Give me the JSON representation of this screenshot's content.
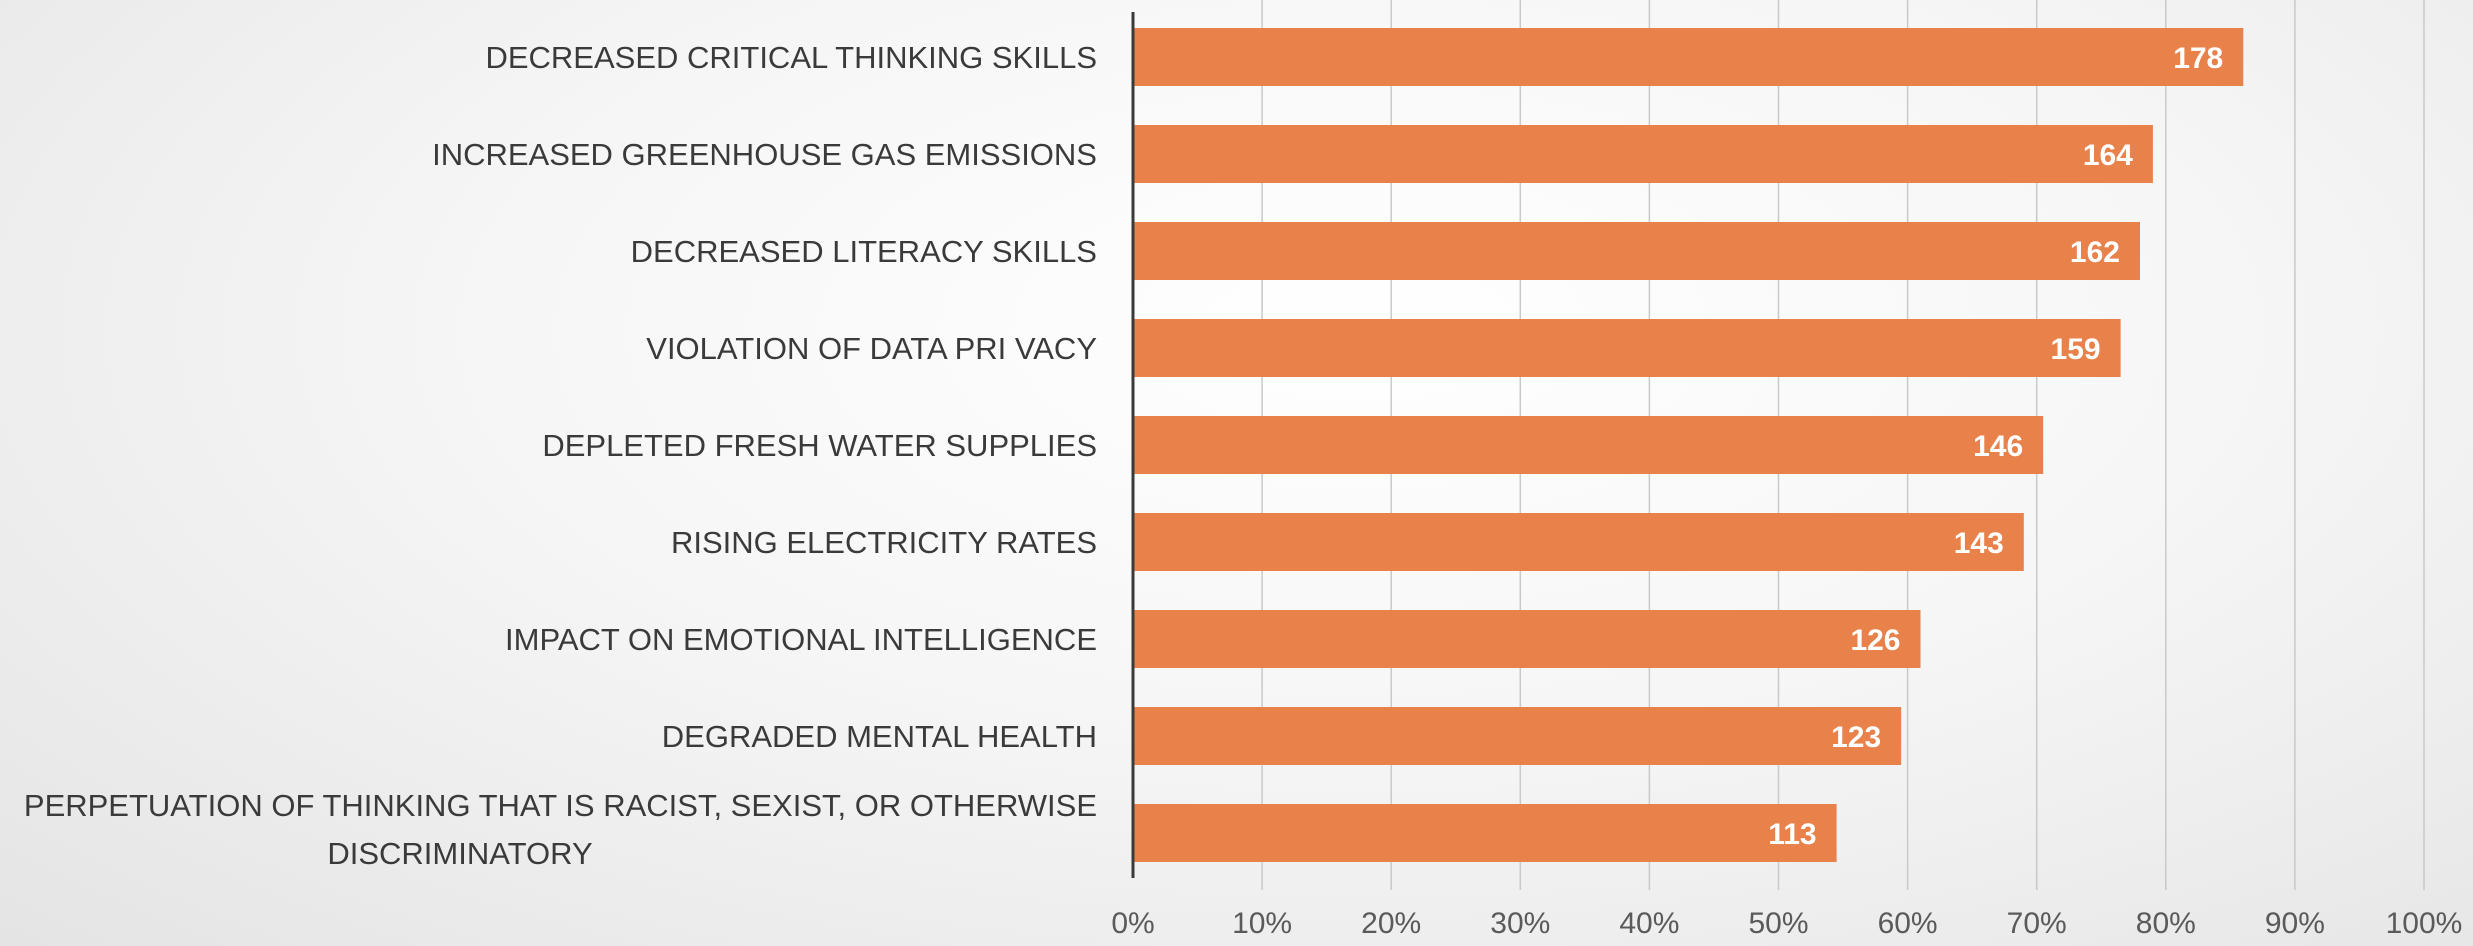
{
  "chart_data": {
    "type": "bar",
    "orientation": "horizontal",
    "categories": [
      "DECREASED CRITICAL THINKING SKILLS",
      "INCREASED GREENHOUSE GAS EMISSIONS",
      "DECREASED LITERACY SKILLS",
      "VIOLATION OF DATA PRI VACY",
      "DEPLETED FRESH WATER SUPPLIES",
      "RISING ELECTRICITY RATES",
      "IMPACT ON EMOTIONAL INTELLIGENCE",
      "DEGRADED MENTAL HEALTH",
      "PERPETUATION OF THINKING THAT IS RACIST, SEXIST, OR OTHERWISE DISCRIMINATORY"
    ],
    "category_lines": [
      [
        "DECREASED CRITICAL THINKING SKILLS"
      ],
      [
        "INCREASED GREENHOUSE GAS EMISSIONS"
      ],
      [
        "DECREASED LITERACY SKILLS"
      ],
      [
        "VIOLATION OF DATA PRI VACY"
      ],
      [
        "DEPLETED FRESH WATER SUPPLIES"
      ],
      [
        "RISING ELECTRICITY RATES"
      ],
      [
        "IMPACT ON EMOTIONAL INTELLIGENCE"
      ],
      [
        "DEGRADED MENTAL HEALTH"
      ],
      [
        "PERPETUATION OF THINKING THAT IS RACIST, SEXIST, OR OTHERWISE",
        "DISCRIMINATORY"
      ]
    ],
    "percent_values": [
      86,
      79,
      78,
      76.5,
      70.5,
      69,
      61,
      59.5,
      54.5
    ],
    "data_labels": [
      "178",
      "164",
      "162",
      "159",
      "146",
      "143",
      "126",
      "123",
      "113"
    ],
    "xlim": [
      0,
      100
    ],
    "x_ticks": [
      0,
      10,
      20,
      30,
      40,
      50,
      60,
      70,
      80,
      90,
      100
    ],
    "x_tick_labels": [
      "0%",
      "10%",
      "20%",
      "30%",
      "40%",
      "50%",
      "60%",
      "70%",
      "80%",
      "90%",
      "100%"
    ],
    "grid": "vertical",
    "bar_color": "#E8814A",
    "title": "",
    "xlabel": "",
    "ylabel": ""
  }
}
